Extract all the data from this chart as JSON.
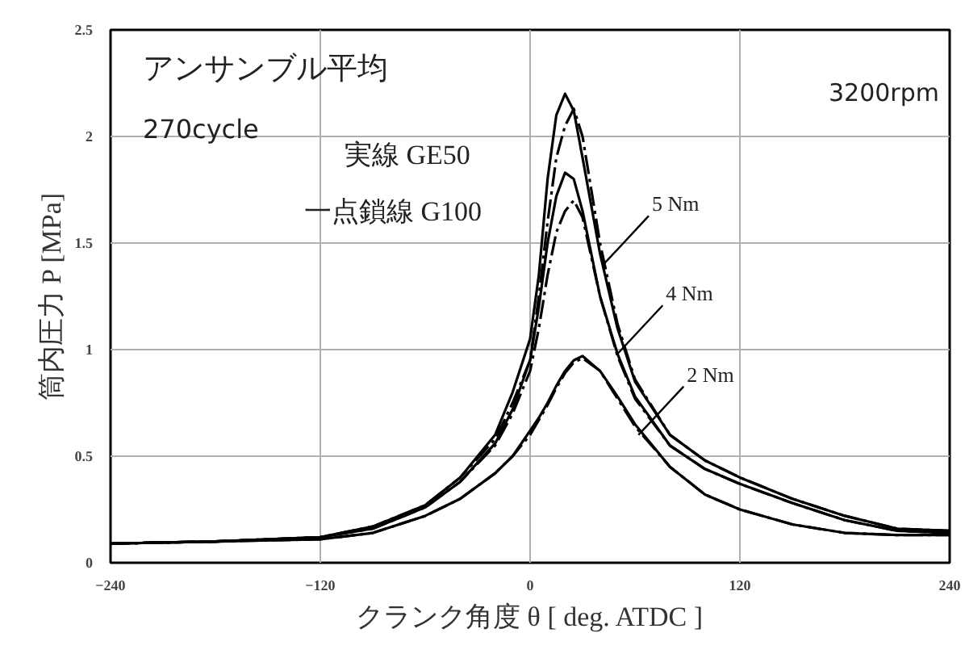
{
  "chart_data": {
    "type": "line",
    "xlabel": "クランク角度 θ [ deg. ATDC ]",
    "ylabel": "筒内圧力 P [MPa]",
    "xlim": [
      -240,
      240
    ],
    "xticks": [
      -240,
      -120,
      0,
      120,
      240
    ],
    "ylim": [
      0,
      2.5
    ],
    "yticks": [
      0,
      0.5,
      1,
      1.5,
      2,
      2.5
    ],
    "grid": true,
    "annotations": [
      "アンサンブル平均",
      "270cycle",
      "実線 GE50",
      "一点鎖線 G100",
      "3200rpm",
      {
        "text": "5 Nm",
        "x": 42,
        "y": 1.4
      },
      {
        "text": "4 Nm",
        "x": 50,
        "y": 0.98
      },
      {
        "text": "2 Nm",
        "x": 62,
        "y": 0.6
      }
    ],
    "x": [
      -240,
      -180,
      -120,
      -90,
      -60,
      -40,
      -20,
      -10,
      0,
      5,
      10,
      15,
      20,
      25,
      30,
      40,
      50,
      60,
      80,
      100,
      120,
      150,
      180,
      210,
      240
    ],
    "series": [
      {
        "color": "#000000",
        "line_style": "solid",
        "values": [
          0.09,
          0.1,
          0.12,
          0.17,
          0.27,
          0.4,
          0.6,
          0.8,
          1.05,
          1.35,
          1.8,
          2.1,
          2.2,
          2.12,
          1.9,
          1.45,
          1.1,
          0.85,
          0.6,
          0.48,
          0.4,
          0.3,
          0.22,
          0.16,
          0.15
        ]
      },
      {
        "color": "#000000",
        "line_style": "dashdot",
        "values": [
          0.09,
          0.1,
          0.12,
          0.17,
          0.27,
          0.4,
          0.58,
          0.75,
          0.95,
          1.25,
          1.6,
          1.9,
          2.05,
          2.13,
          2.0,
          1.5,
          1.12,
          0.86,
          0.6,
          0.48,
          0.4,
          0.3,
          0.22,
          0.16,
          0.15
        ]
      },
      {
        "color": "#000000",
        "line_style": "solid",
        "values": [
          0.09,
          0.1,
          0.12,
          0.16,
          0.26,
          0.38,
          0.56,
          0.72,
          0.95,
          1.2,
          1.5,
          1.72,
          1.83,
          1.8,
          1.65,
          1.25,
          0.98,
          0.78,
          0.55,
          0.44,
          0.37,
          0.28,
          0.2,
          0.15,
          0.14
        ]
      },
      {
        "color": "#000000",
        "line_style": "dashdot",
        "values": [
          0.09,
          0.1,
          0.12,
          0.16,
          0.26,
          0.38,
          0.55,
          0.7,
          0.9,
          1.1,
          1.35,
          1.55,
          1.65,
          1.7,
          1.62,
          1.25,
          0.97,
          0.77,
          0.55,
          0.44,
          0.37,
          0.28,
          0.2,
          0.15,
          0.14
        ]
      },
      {
        "color": "#000000",
        "line_style": "solid",
        "values": [
          0.09,
          0.1,
          0.11,
          0.14,
          0.22,
          0.3,
          0.42,
          0.5,
          0.62,
          0.68,
          0.75,
          0.83,
          0.9,
          0.95,
          0.97,
          0.9,
          0.78,
          0.65,
          0.45,
          0.32,
          0.25,
          0.18,
          0.14,
          0.13,
          0.13
        ]
      },
      {
        "color": "#000000",
        "line_style": "dashdot",
        "values": [
          0.09,
          0.1,
          0.11,
          0.14,
          0.22,
          0.3,
          0.42,
          0.5,
          0.6,
          0.67,
          0.74,
          0.82,
          0.89,
          0.94,
          0.96,
          0.9,
          0.77,
          0.64,
          0.45,
          0.32,
          0.25,
          0.18,
          0.14,
          0.13,
          0.13
        ]
      }
    ]
  }
}
